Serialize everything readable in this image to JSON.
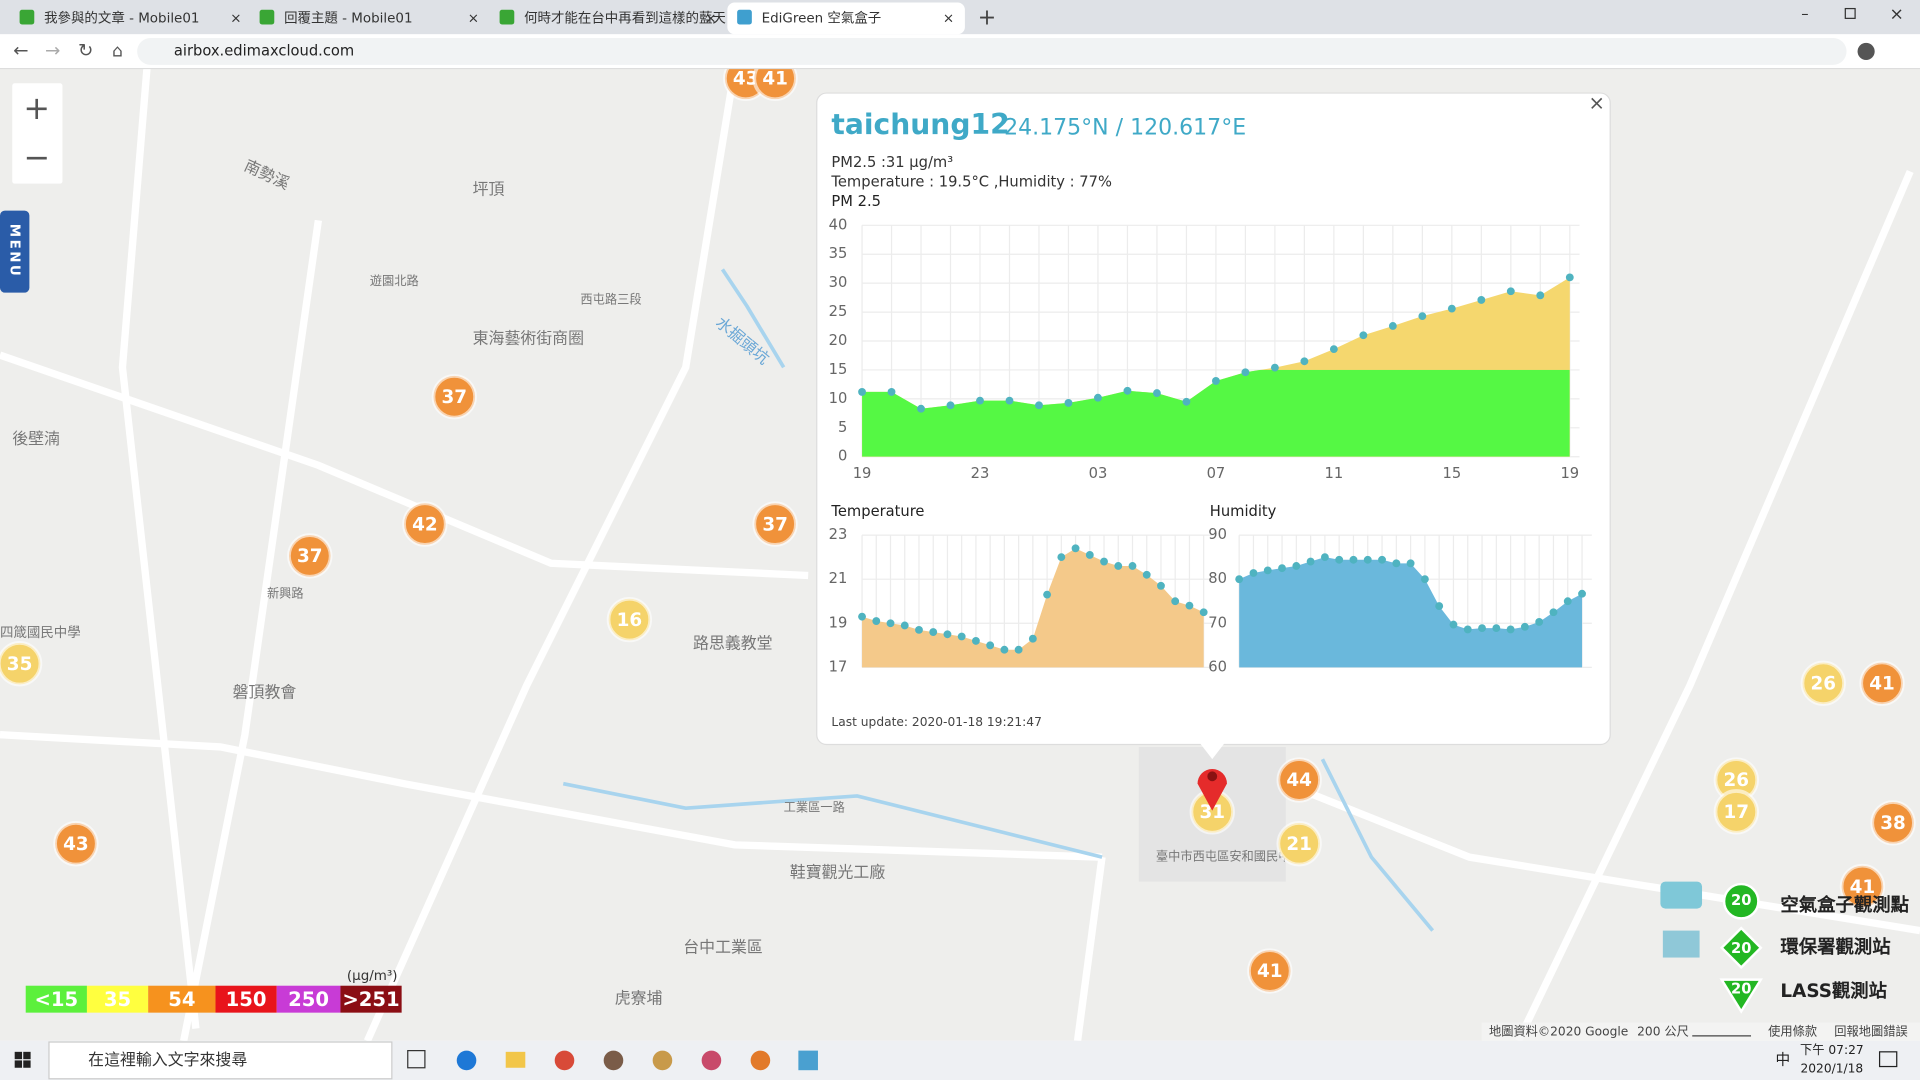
{
  "browser": {
    "tabs": [
      "我參與的文章 - Mobile01",
      "回覆主題 - Mobile01",
      "何時才能在台中再看到這樣的藍天",
      "EdiGreen 空氣盒子"
    ],
    "url": "airbox.edimaxcloud.com"
  },
  "map": {
    "menu": "MENU",
    "labels": [
      "坪頂",
      "南勢溪",
      "後壁湳",
      "東海藝術街商圈",
      "路思義教堂",
      "台中工業區",
      "虎寮埔",
      "鞋寶觀光工廠",
      "四箴國民中學",
      "新興路",
      "遊園北路",
      "西屯路三段",
      "水掘頭坑",
      "磐頂教會",
      "工業區一路",
      "臺中市西屯區安和國民中學"
    ],
    "markers": [
      {
        "label": "43",
        "color": "#f0923a"
      },
      {
        "label": "41",
        "color": "#f0923a"
      },
      {
        "label": "37",
        "color": "#f0923a"
      },
      {
        "label": "42",
        "color": "#f0923a"
      },
      {
        "label": "37",
        "color": "#f0923a"
      },
      {
        "label": "37",
        "color": "#f0923a"
      },
      {
        "label": "16",
        "color": "#f5d36a"
      },
      {
        "label": "35",
        "color": "#f5d36a"
      },
      {
        "label": "43",
        "color": "#f0923a"
      },
      {
        "label": "44",
        "color": "#f0923a"
      },
      {
        "label": "21",
        "color": "#f5d36a"
      },
      {
        "label": "31",
        "color": "#f5d36a"
      },
      {
        "label": "41",
        "color": "#f0923a"
      },
      {
        "label": "26",
        "color": "#f5d36a"
      },
      {
        "label": "41",
        "color": "#f0923a"
      },
      {
        "label": "26",
        "color": "#f5d36a"
      },
      {
        "label": "17",
        "color": "#f5d36a"
      },
      {
        "label": "38",
        "color": "#f0923a"
      },
      {
        "label": "41",
        "color": "#f0923a"
      }
    ],
    "legend": [
      {
        "label": "<15",
        "color": "#5cf03c"
      },
      {
        "label": "35",
        "color": "#ffff3f"
      },
      {
        "label": "54",
        "color": "#f6921e"
      },
      {
        "label": "150",
        "color": "#e8141b"
      },
      {
        "label": "250",
        "color": "#c83bd6"
      },
      {
        "label": ">251",
        "color": "#8b0e14"
      }
    ],
    "legend_unit": "(μg/m³)",
    "station_types": [
      "空氣盒子觀測點",
      "環保署觀測站",
      "LASS觀測站"
    ],
    "station_badge": "20",
    "footer": [
      "地圖資料©2020 Google",
      "200 公尺",
      "使用條款",
      "回報地圖錯誤"
    ]
  },
  "popup": {
    "title": "taichung12",
    "coords": "24.175°N / 120.617°E",
    "pm": "PM2.5 :31 μg/m³",
    "env": "Temperature : 19.5°C ,Humidity : 77%",
    "updated": "Last update: 2020-01-18 19:21:47"
  },
  "chart_data": [
    {
      "type": "area",
      "title": "PM 2.5",
      "categories": [
        "19",
        null,
        null,
        null,
        "23",
        null,
        null,
        null,
        "03",
        null,
        null,
        null,
        "07",
        null,
        null,
        null,
        "11",
        null,
        null,
        null,
        "15",
        null,
        null,
        null,
        "19"
      ],
      "values": [
        11.2,
        11.2,
        8.3,
        8.9,
        9.7,
        9.7,
        8.9,
        9.3,
        10.2,
        11.4,
        11,
        9.5,
        13.1,
        14.6,
        15.4,
        16.5,
        18.6,
        21,
        22.6,
        24.3,
        25.6,
        27.1,
        28.6,
        27.9,
        31
      ],
      "color": "#f5d76e",
      "low_color": "#55f844",
      "color_split": 15,
      "point_color": "#4fb3c0",
      "ylim": [
        0,
        40
      ],
      "yticks": [
        0,
        5,
        10,
        15,
        20,
        25,
        30,
        35,
        40
      ],
      "grid": true
    },
    {
      "type": "area",
      "title": "Temperature",
      "values": [
        19.3,
        19.1,
        19.0,
        18.9,
        18.7,
        18.6,
        18.5,
        18.4,
        18.2,
        18.0,
        17.8,
        17.8,
        18.3,
        20.3,
        22.0,
        22.4,
        22.1,
        21.8,
        21.6,
        21.6,
        21.2,
        20.7,
        20.0,
        19.8,
        19.5
      ],
      "color": "#f4c98a",
      "point_color": "#4fb3c0",
      "ylim": [
        17,
        23
      ],
      "yticks": [
        17,
        19,
        21,
        23
      ],
      "grid": true
    },
    {
      "type": "area",
      "title": "Humidity",
      "values": [
        80,
        81.4,
        82,
        82.5,
        83,
        84,
        85,
        84.4,
        84.4,
        84.4,
        84.4,
        83.6,
        83.6,
        80,
        73.9,
        69.7,
        68.6,
        68.9,
        68.9,
        68.6,
        69.2,
        70.3,
        72.5,
        75,
        76.7
      ],
      "color": "#6ab8dc",
      "point_color": "#4fb3c0",
      "ylim": [
        60,
        90
      ],
      "yticks": [
        60,
        70,
        80,
        90
      ],
      "grid": true
    }
  ],
  "taskbar": {
    "search": "在這裡輸入文字來搜尋",
    "ime": "中",
    "time": "下午 07:27",
    "date": "2020/1/18"
  }
}
